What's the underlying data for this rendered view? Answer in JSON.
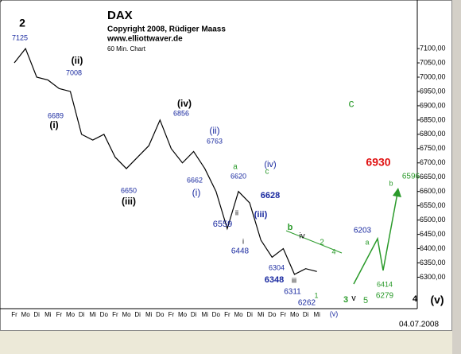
{
  "chart_data": {
    "type": "line",
    "title": "DAX",
    "subtitle": [
      "Copyright 2008, Rüdiger Maass",
      "www.elliottwaver.de",
      "60 Min. Chart"
    ],
    "date": "04.07.2008",
    "color": "#000000",
    "categories": [
      "Fr",
      "Mo",
      "Di",
      "Mi",
      "Fr",
      "Mo",
      "Di",
      "Mi",
      "Do",
      "Fr",
      "Mo",
      "Di",
      "Mi",
      "Do",
      "Fr",
      "Mo",
      "Di",
      "Mi",
      "Do",
      "Fr",
      "Mo",
      "Di",
      "Mi",
      "Do",
      "Fr",
      "Mo",
      "Di",
      "Mi"
    ],
    "values": [
      7050,
      7100,
      7000,
      6990,
      6960,
      6950,
      6800,
      6780,
      6800,
      6720,
      6680,
      6720,
      6760,
      6850,
      6750,
      6700,
      6740,
      6680,
      6600,
      6470,
      6600,
      6560,
      6430,
      6370,
      6400,
      6310,
      6330,
      6320
    ],
    "ylim": [
      6190,
      7270
    ],
    "yticks": [
      {
        "value": 7100,
        "label": "7100,00"
      },
      {
        "value": 7050,
        "label": "7050,00"
      },
      {
        "value": 7000,
        "label": "7000,00"
      },
      {
        "value": 6950,
        "label": "6950,00"
      },
      {
        "value": 6900,
        "label": "6900,00"
      },
      {
        "value": 6850,
        "label": "6850,00"
      },
      {
        "value": 6800,
        "label": "6800,00"
      },
      {
        "value": 6750,
        "label": "6750,00"
      },
      {
        "value": 6700,
        "label": "6700,00"
      },
      {
        "value": 6650,
        "label": "6650,00"
      },
      {
        "value": 6600,
        "label": "6600,00"
      },
      {
        "value": 6550,
        "label": "6550,00"
      },
      {
        "value": 6500,
        "label": "6500,00"
      },
      {
        "value": 6450,
        "label": "6450,00"
      },
      {
        "value": 6400,
        "label": "6400,00"
      },
      {
        "value": 6350,
        "label": "6350,00"
      },
      {
        "value": 6300,
        "label": "6300,00"
      }
    ],
    "projection_color": "#2a9a2a",
    "annotations": [
      {
        "text": "2",
        "color": "#000"
      },
      {
        "text": "7125",
        "color": "#1a2aa0"
      },
      {
        "text": "(ii)",
        "color": "#000"
      },
      {
        "text": "7008",
        "color": "#1a2aa0"
      },
      {
        "text": "6689",
        "color": "#1a2aa0"
      },
      {
        "text": "(i)",
        "color": "#000"
      },
      {
        "text": "(iv)",
        "color": "#000"
      },
      {
        "text": "6856",
        "color": "#1a2aa0"
      },
      {
        "text": "(ii)",
        "color": "#1a2aa0"
      },
      {
        "text": "6763",
        "color": "#1a2aa0"
      },
      {
        "text": "6662",
        "color": "#1a2aa0"
      },
      {
        "text": "(i)",
        "color": "#1a2aa0"
      },
      {
        "text": "6650",
        "color": "#1a2aa0"
      },
      {
        "text": "(iii)",
        "color": "#000"
      },
      {
        "text": "a",
        "color": "#2a9a2a"
      },
      {
        "text": "6620",
        "color": "#1a2aa0"
      },
      {
        "text": "(iv)",
        "color": "#1a2aa0"
      },
      {
        "text": "c",
        "color": "#2a9a2a"
      },
      {
        "text": "6628",
        "color": "#1a2aa0"
      },
      {
        "text": "ii",
        "color": "#000"
      },
      {
        "text": "6559",
        "color": "#1a2aa0"
      },
      {
        "text": "(iii)",
        "color": "#1a2aa0"
      },
      {
        "text": "i",
        "color": "#000"
      },
      {
        "text": "6448",
        "color": "#1a2aa0"
      },
      {
        "text": "b",
        "color": "#2a9a2a"
      },
      {
        "text": "iv",
        "color": "#000"
      },
      {
        "text": "2",
        "color": "#2a9a2a"
      },
      {
        "text": "4",
        "color": "#2a9a2a"
      },
      {
        "text": "6304",
        "color": "#1a2aa0"
      },
      {
        "text": "6348",
        "color": "#1a2aa0"
      },
      {
        "text": "iii",
        "color": "#000"
      },
      {
        "text": "6311",
        "color": "#1a2aa0"
      },
      {
        "text": "1",
        "color": "#2a9a2a"
      },
      {
        "text": "6262",
        "color": "#1a2aa0"
      },
      {
        "text": "3",
        "color": "#2a9a2a"
      },
      {
        "text": "v",
        "color": "#000"
      },
      {
        "text": "5",
        "color": "#2a9a2a"
      },
      {
        "text": "(v)",
        "color": "#1a2aa0"
      },
      {
        "text": "6203",
        "color": "#1a2aa0"
      },
      {
        "text": "a",
        "color": "#2a9a2a"
      },
      {
        "text": "6414",
        "color": "#2a9a2a"
      },
      {
        "text": "6279",
        "color": "#2a9a2a"
      },
      {
        "text": "b",
        "color": "#2a9a2a"
      },
      {
        "text": "6596",
        "color": "#2a9a2a"
      },
      {
        "text": "c",
        "color": "#2a9a2a"
      },
      {
        "text": "6930",
        "color": "#e01010"
      },
      {
        "text": "4",
        "color": "#000"
      },
      {
        "text": "(v)",
        "color": "#000"
      },
      {
        "text": "3",
        "color": "#000"
      }
    ]
  }
}
